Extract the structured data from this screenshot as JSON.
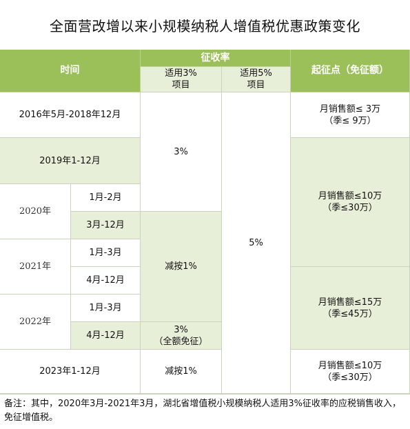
{
  "title": "全面营改增以来小规模纳税人增值税优惠政策变化",
  "header": {
    "time": "时间",
    "rate": "征收率",
    "rate3": [
      "适用3%",
      "项目"
    ],
    "rate5": [
      "适用5%",
      "项目"
    ],
    "threshold": "起征点（免征额）"
  },
  "rows": {
    "r1_time": "2016年5月-2018年12月",
    "r2_time": "2019年1-12月",
    "y2020": "2020年",
    "y2020_m1": "1月-2月",
    "y2020_m2": "3月-12月",
    "y2021": "2021年",
    "y2021_m1": "1月-3月",
    "y2021_m2": "4月-12月",
    "y2022": "2022年",
    "y2022_m1": "1月-3月",
    "y2022_m2": "4月-12月",
    "r_last_time": "2023年1-12月"
  },
  "rate3": {
    "a": "3%",
    "b": "减按1%",
    "c": [
      "3%",
      "（全额免征）"
    ],
    "d": "减按1%"
  },
  "rate5": {
    "all": "5%"
  },
  "threshold": {
    "t1": [
      "月销售额≤ 3万",
      "（季≤ 9万）"
    ],
    "t2": [
      "月销售额≤10万",
      "（季≤30万）"
    ],
    "t3": [
      "月销售额≤15万",
      "（季≤45万）"
    ],
    "t4": [
      "月销售额≤10万",
      "（季≤30万）"
    ]
  },
  "note": "备注：其中，2020年3月-2021年3月，湖北省增值税小规模纳税人适用3%征收率的应税销售收入，免征增值税。"
}
